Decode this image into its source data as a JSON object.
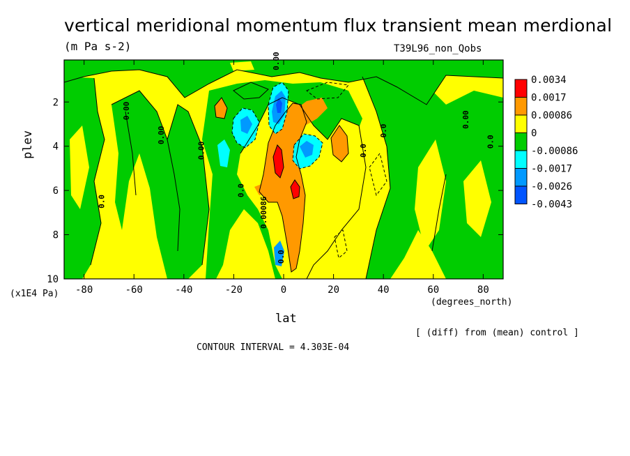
{
  "header": {
    "title": "vertical meridional momentum flux transient mean merdional",
    "units": "(m Pa s-2)",
    "run": "T39L96_non_Qobs"
  },
  "footer": {
    "contour_interval": "CONTOUR INTERVAL = 4.303E-04",
    "diff_note": "[ (diff) from (mean) control ]"
  },
  "chart_data": {
    "type": "heatmap",
    "title": "vertical meridional momentum flux transient mean merdional",
    "subtitle": "(m Pa s-2)",
    "xlabel": "lat",
    "xunit": "(degrees_north)",
    "ylabel": "plev",
    "yunit": "(x1E4 Pa)",
    "xlim": [
      -88,
      88
    ],
    "ylim": [
      10,
      0.1
    ],
    "xticks": [
      -80,
      -60,
      -40,
      -20,
      0,
      20,
      40,
      60,
      80
    ],
    "yticks": [
      2,
      4,
      6,
      8,
      10
    ],
    "contour_interval": 0.0004303,
    "colorbar": {
      "labels": [
        "0.0034",
        "0.0017",
        "0.00086",
        "0",
        "-0.00086",
        "-0.0017",
        "-0.0026",
        "-0.0043"
      ],
      "colors": [
        "#ff0000",
        "#ff9900",
        "#ffff00",
        "#00cc00",
        "#00ffff",
        "#0099ff",
        "#0055ff"
      ]
    },
    "contour_labels": [
      {
        "text": "0.00",
        "lat": -2,
        "plev": 0.15
      },
      {
        "text": "0.00",
        "lat": -48,
        "plev": 3.5
      },
      {
        "text": "0.00",
        "lat": -32,
        "plev": 4.2
      },
      {
        "text": "0.00",
        "lat": -62,
        "plev": 2.4
      },
      {
        "text": "0.0",
        "lat": -72,
        "plev": 6.5
      },
      {
        "text": "0.0",
        "lat": -16,
        "plev": 6.0
      },
      {
        "text": "0.00086",
        "lat": -7,
        "plev": 7.0
      },
      {
        "text": "0.0",
        "lat": 33,
        "plev": 4.2
      },
      {
        "text": "0.0",
        "lat": 41,
        "plev": 3.3
      },
      {
        "text": "0.00",
        "lat": 74,
        "plev": 2.8
      },
      {
        "text": "0.0",
        "lat": 84,
        "plev": 3.8
      },
      {
        "text": "0.0",
        "lat": 0,
        "plev": 9.0
      }
    ],
    "features": [
      {
        "lat": 0,
        "plev": 4.5,
        "value": 0.0034
      },
      {
        "lat": 6,
        "plev": 6.2,
        "value": 0.0034
      },
      {
        "lat": 4,
        "plev": 5.4,
        "value": 0.0017
      },
      {
        "lat": 3,
        "plev": 2.5,
        "value": 0.0017
      },
      {
        "lat": -23,
        "plev": 2.4,
        "value": 0.0017
      },
      {
        "lat": 22,
        "plev": 3.9,
        "value": 0.0017
      },
      {
        "lat": -1,
        "plev": 2.2,
        "value": -0.0043
      },
      {
        "lat": 8,
        "plev": 3.8,
        "value": -0.0026
      },
      {
        "lat": -14,
        "plev": 3.0,
        "value": -0.0017
      },
      {
        "lat": -26,
        "plev": 4.2,
        "value": -0.0017
      }
    ]
  }
}
